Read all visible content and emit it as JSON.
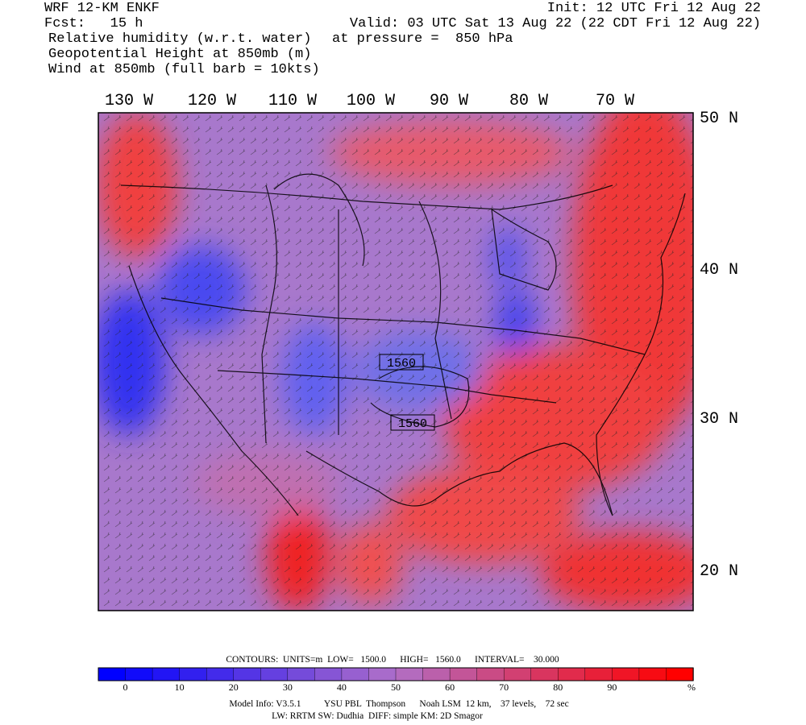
{
  "header": {
    "left": [
      "WRF 12-KM ENKF",
      "Fcst:   15 h",
      "Relative humidity (w.r.t. water)",
      "Geopotential Height at 850mb (m)",
      "Wind at 850mb (full barb = 10kts)"
    ],
    "right": [
      "Init: 12 UTC Fri 12 Aug 22",
      "Valid: 03 UTC Sat 13 Aug 22 (22 CDT Fri 12 Aug 22)"
    ],
    "pressure": "at pressure =  850 hPa"
  },
  "map": {
    "longitude_labels": [
      "130 W",
      "120 W",
      "110 W",
      "100 W",
      "90 W",
      "80 W",
      "70 W"
    ],
    "latitude_labels": [
      "50 N",
      "40 N",
      "30 N",
      "20 N"
    ],
    "contour_labels": [
      "1560",
      "1560"
    ]
  },
  "colorbar": {
    "ticks": [
      0,
      10,
      20,
      30,
      40,
      50,
      60,
      70,
      80,
      90
    ],
    "unit": "%"
  },
  "footer": {
    "contours": "CONTOURS:  UNITS=m  LOW=   1500.0      HIGH=   1560.0      INTERVAL=    30.000",
    "model_info": "Model Info: V3.5.1          YSU PBL  Thompson      Noah LSM  12 km,    37 levels,    72 sec",
    "physics": "LW: RRTM SW: Dudhia  DIFF: simple KM: 2D Smagor"
  }
}
